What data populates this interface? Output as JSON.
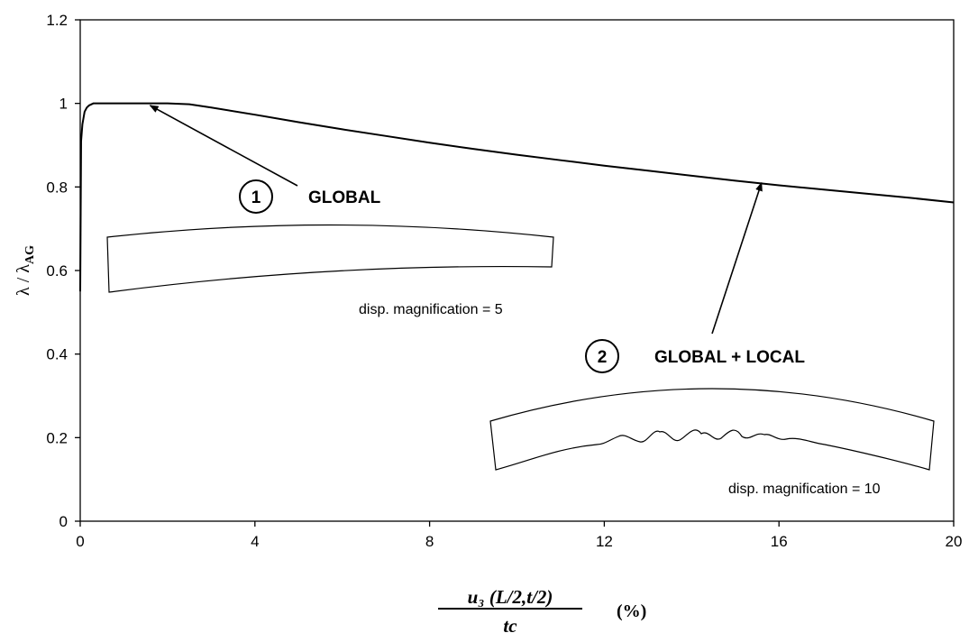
{
  "chart_data": {
    "type": "line",
    "x_ticks": [
      "0",
      "4",
      "8",
      "12",
      "16",
      "20"
    ],
    "y_ticks": [
      "0",
      "0.2",
      "0.4",
      "0.6",
      "0.8",
      "1",
      "1.2"
    ],
    "xlim": [
      0,
      20
    ],
    "ylim": [
      0,
      1.2
    ],
    "grid": false,
    "ylabel": "λ / λ",
    "ylabel_sub": "AG",
    "xlabel_numerator": "u₃ (L/2,t/2)",
    "xlabel_denominator": "tc",
    "xlabel_unit": "(%)",
    "series": [
      {
        "x": [
          0,
          0.02,
          0.05,
          0.1,
          0.15,
          0.2,
          0.3,
          0.5,
          1.0,
          1.5,
          2.0,
          2.5,
          3,
          4,
          5,
          6,
          7,
          8,
          9,
          10,
          11,
          12,
          13,
          14,
          15,
          16,
          17,
          18,
          19,
          20
        ],
        "y": [
          0.55,
          0.91,
          0.95,
          0.98,
          0.99,
          0.995,
          1.0,
          1.0,
          1.0,
          1.0,
          1.0,
          0.998,
          0.99,
          0.973,
          0.955,
          0.938,
          0.922,
          0.906,
          0.891,
          0.877,
          0.864,
          0.851,
          0.839,
          0.827,
          0.815,
          0.804,
          0.794,
          0.784,
          0.774,
          0.763
        ]
      }
    ],
    "annotations": [
      {
        "number": "1",
        "label": "GLOBAL",
        "caption": "disp. magnification = 5",
        "arrow_to": [
          1.6,
          0.995
        ]
      },
      {
        "number": "2",
        "label": "GLOBAL + LOCAL",
        "caption": "disp. magnification = 10",
        "arrow_to": [
          15.6,
          0.81
        ]
      }
    ]
  }
}
